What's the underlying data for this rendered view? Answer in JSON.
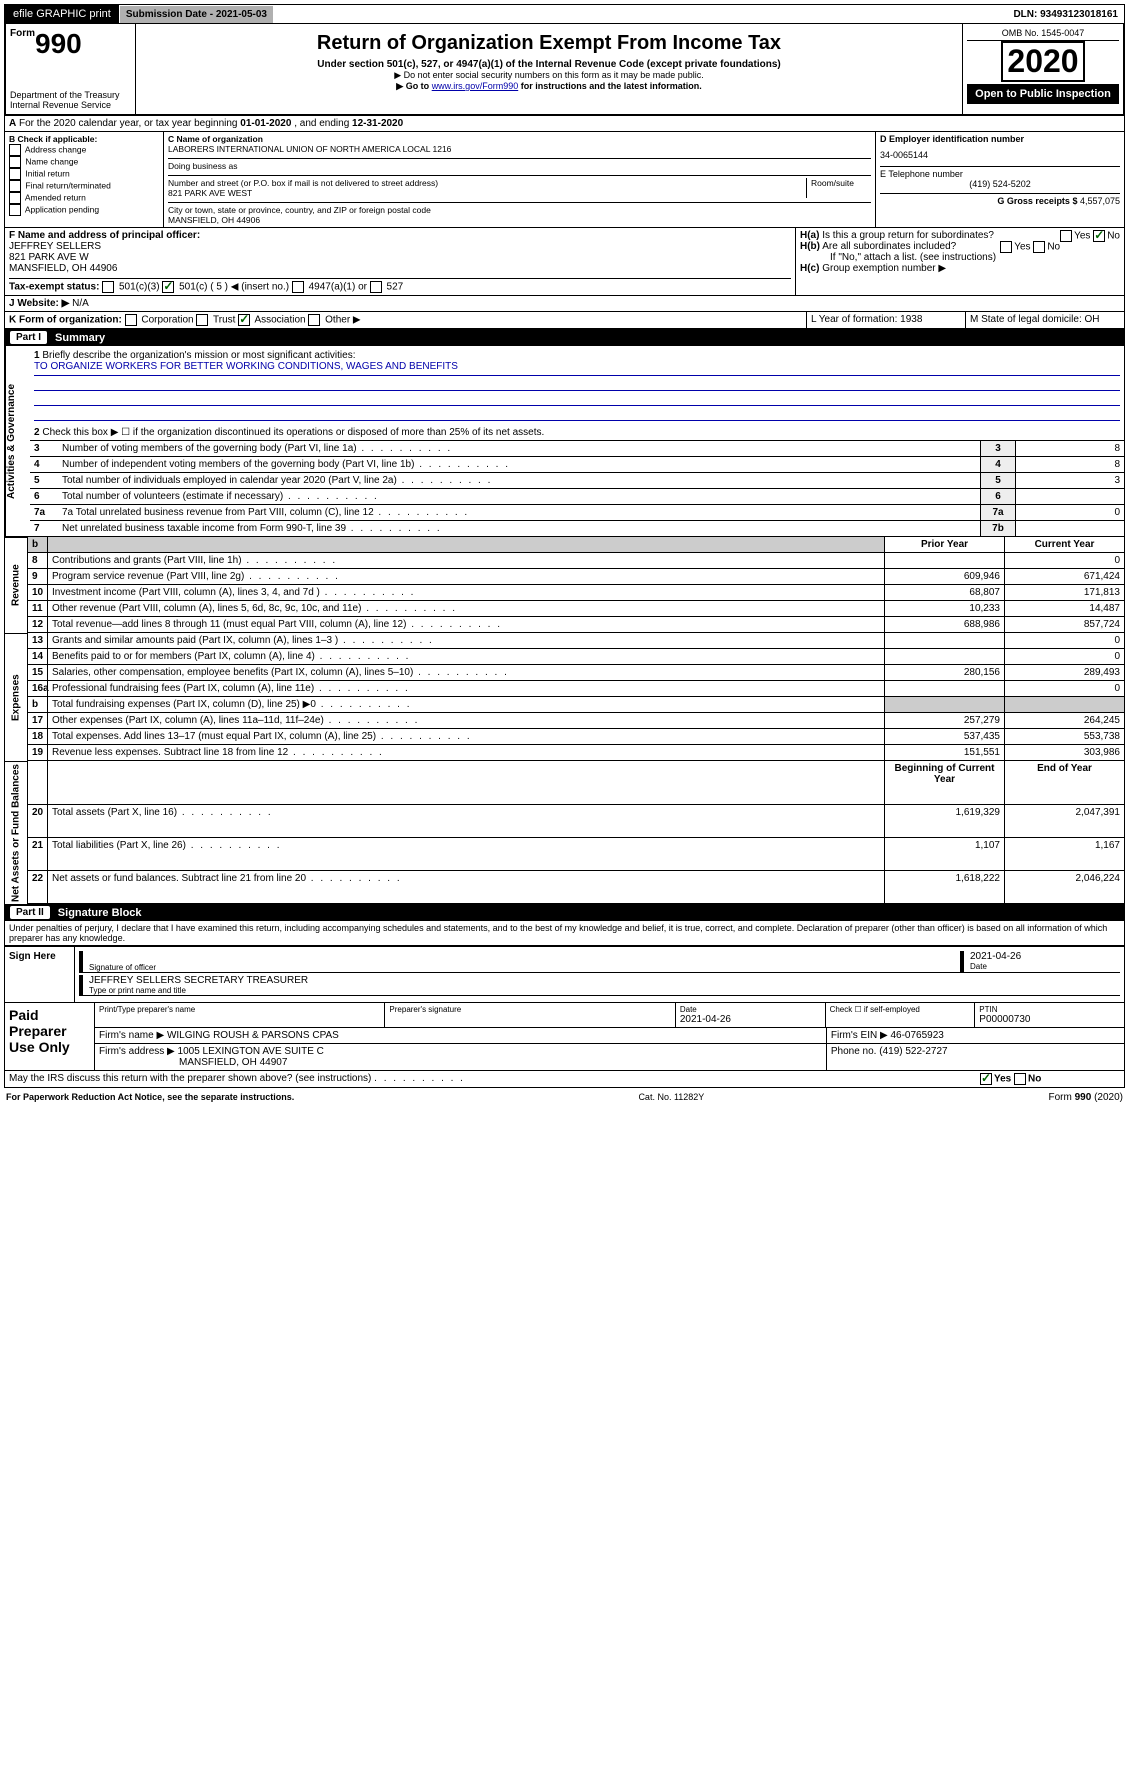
{
  "topbar": {
    "efile": "efile GRAPHIC print",
    "subdate_label": "Submission Date - ",
    "subdate": "2021-05-03",
    "dln_label": "DLN: ",
    "dln": "93493123018161"
  },
  "header": {
    "form_prefix": "Form",
    "form_num": "990",
    "dept": "Department of the Treasury\nInternal Revenue Service",
    "title": "Return of Organization Exempt From Income Tax",
    "subtitle": "Under section 501(c), 527, or 4947(a)(1) of the Internal Revenue Code (except private foundations)",
    "note1": "▶ Do not enter social security numbers on this form as it may be made public.",
    "note2_a": "▶ Go to ",
    "note2_link": "www.irs.gov/Form990",
    "note2_b": " for instructions and the latest information.",
    "omb": "OMB No. 1545-0047",
    "year": "2020",
    "open": "Open to Public Inspection"
  },
  "A": {
    "text": "For the 2020 calendar year, or tax year beginning ",
    "d1": "01-01-2020",
    "mid": " , and ending ",
    "d2": "12-31-2020"
  },
  "B": {
    "label": "B Check if applicable:",
    "items": [
      "Address change",
      "Name change",
      "Initial return",
      "Final return/terminated",
      "Amended return",
      "Application pending"
    ]
  },
  "C": {
    "name_label": "C Name of organization",
    "name": "LABORERS INTERNATIONAL UNION OF NORTH AMERICA LOCAL 1216",
    "dba_label": "Doing business as",
    "addr_label": "Number and street (or P.O. box if mail is not delivered to street address)",
    "room_label": "Room/suite",
    "addr": "821 PARK AVE WEST",
    "city_label": "City or town, state or province, country, and ZIP or foreign postal code",
    "city": "MANSFIELD, OH  44906"
  },
  "D": {
    "label": "D Employer identification number",
    "val": "34-0065144"
  },
  "E": {
    "label": "E Telephone number",
    "val": "(419) 524-5202"
  },
  "G": {
    "label": "G Gross receipts $ ",
    "val": "4,557,075"
  },
  "F": {
    "label": "F Name and address of principal officer:",
    "name": "JEFFREY SELLERS",
    "addr1": "821 PARK AVE W",
    "addr2": "MANSFIELD, OH  44906"
  },
  "H": {
    "a": "Is this a group return for subordinates?",
    "b": "Are all subordinates included?",
    "b2": "If \"No,\" attach a list. (see instructions)",
    "c": "Group exemption number ▶"
  },
  "I": {
    "label": "Tax-exempt status:",
    "opts": [
      "501(c)(3)",
      "501(c) ( 5 ) ◀ (insert no.)",
      "4947(a)(1) or",
      "527"
    ]
  },
  "J": {
    "label": "Website: ▶",
    "val": "N/A"
  },
  "K": {
    "label": "K Form of organization:",
    "opts": [
      "Corporation",
      "Trust",
      "Association",
      "Other ▶"
    ]
  },
  "L": {
    "label": "L Year of formation: ",
    "val": "1938"
  },
  "M": {
    "label": "M State of legal domicile: ",
    "val": "OH"
  },
  "part1": {
    "num": "Part I",
    "title": "Summary"
  },
  "mission": {
    "q": "Briefly describe the organization's mission or most significant activities:",
    "text": "TO ORGANIZE WORKERS FOR BETTER WORKING CONDITIONS, WAGES AND BENEFITS"
  },
  "lines": {
    "2": "Check this box ▶ ☐  if the organization discontinued its operations or disposed of more than 25% of its net assets.",
    "3": {
      "t": "Number of voting members of the governing body (Part VI, line 1a)",
      "n": "3",
      "v": "8"
    },
    "4": {
      "t": "Number of independent voting members of the governing body (Part VI, line 1b)",
      "n": "4",
      "v": "8"
    },
    "5": {
      "t": "Total number of individuals employed in calendar year 2020 (Part V, line 2a)",
      "n": "5",
      "v": "3"
    },
    "6": {
      "t": "Total number of volunteers (estimate if necessary)",
      "n": "6",
      "v": ""
    },
    "7a": {
      "t": "Total unrelated business revenue from Part VIII, column (C), line 12",
      "n": "7a",
      "v": "0"
    },
    "7b": {
      "t": "Net unrelated business taxable income from Form 990-T, line 39",
      "n": "7b",
      "v": ""
    }
  },
  "fin_hdr": {
    "b": "b",
    "prior": "Prior Year",
    "current": "Current Year"
  },
  "revenue": {
    "label": "Revenue",
    "rows": [
      {
        "n": "8",
        "t": "Contributions and grants (Part VIII, line 1h)",
        "p": "",
        "c": "0"
      },
      {
        "n": "9",
        "t": "Program service revenue (Part VIII, line 2g)",
        "p": "609,946",
        "c": "671,424"
      },
      {
        "n": "10",
        "t": "Investment income (Part VIII, column (A), lines 3, 4, and 7d )",
        "p": "68,807",
        "c": "171,813"
      },
      {
        "n": "11",
        "t": "Other revenue (Part VIII, column (A), lines 5, 6d, 8c, 9c, 10c, and 11e)",
        "p": "10,233",
        "c": "14,487"
      },
      {
        "n": "12",
        "t": "Total revenue—add lines 8 through 11 (must equal Part VIII, column (A), line 12)",
        "p": "688,986",
        "c": "857,724"
      }
    ]
  },
  "expenses": {
    "label": "Expenses",
    "rows": [
      {
        "n": "13",
        "t": "Grants and similar amounts paid (Part IX, column (A), lines 1–3 )",
        "p": "",
        "c": "0"
      },
      {
        "n": "14",
        "t": "Benefits paid to or for members (Part IX, column (A), line 4)",
        "p": "",
        "c": "0"
      },
      {
        "n": "15",
        "t": "Salaries, other compensation, employee benefits (Part IX, column (A), lines 5–10)",
        "p": "280,156",
        "c": "289,493"
      },
      {
        "n": "16a",
        "t": "Professional fundraising fees (Part IX, column (A), line 11e)",
        "p": "",
        "c": "0"
      },
      {
        "n": "b",
        "t": "Total fundraising expenses (Part IX, column (D), line 25) ▶0",
        "p": "SHADE",
        "c": "SHADE"
      },
      {
        "n": "17",
        "t": "Other expenses (Part IX, column (A), lines 11a–11d, 11f–24e)",
        "p": "257,279",
        "c": "264,245"
      },
      {
        "n": "18",
        "t": "Total expenses. Add lines 13–17 (must equal Part IX, column (A), line 25)",
        "p": "537,435",
        "c": "553,738"
      },
      {
        "n": "19",
        "t": "Revenue less expenses. Subtract line 18 from line 12",
        "p": "151,551",
        "c": "303,986"
      }
    ]
  },
  "netassets": {
    "label": "Net Assets or Fund Balances",
    "hdr": {
      "p": "Beginning of Current Year",
      "c": "End of Year"
    },
    "rows": [
      {
        "n": "20",
        "t": "Total assets (Part X, line 16)",
        "p": "1,619,329",
        "c": "2,047,391"
      },
      {
        "n": "21",
        "t": "Total liabilities (Part X, line 26)",
        "p": "1,107",
        "c": "1,167"
      },
      {
        "n": "22",
        "t": "Net assets or fund balances. Subtract line 21 from line 20",
        "p": "1,618,222",
        "c": "2,046,224"
      }
    ]
  },
  "part2": {
    "num": "Part II",
    "title": "Signature Block"
  },
  "perjury": "Under penalties of perjury, I declare that I have examined this return, including accompanying schedules and statements, and to the best of my knowledge and belief, it is true, correct, and complete. Declaration of preparer (other than officer) is based on all information of which preparer has any knowledge.",
  "sign": {
    "here": "Sign Here",
    "sig_label": "Signature of officer",
    "date": "2021-04-26",
    "date_label": "Date",
    "name": "JEFFREY SELLERS SECRETARY TREASURER",
    "name_label": "Type or print name and title"
  },
  "paid": {
    "label": "Paid Preparer Use Only",
    "h1": "Print/Type preparer's name",
    "h2": "Preparer's signature",
    "h3": "Date",
    "h4": "Check ☐ if self-employed",
    "h5": "PTIN",
    "date": "2021-04-26",
    "ptin": "P00000730",
    "firm_label": "Firm's name  ▶",
    "firm": "WILGING ROUSH & PARSONS CPAS",
    "ein_label": "Firm's EIN ▶",
    "ein": "46-0765923",
    "addr_label": "Firm's address ▶",
    "addr": "1005 LEXINGTON AVE SUITE C",
    "city": "MANSFIELD, OH  44907",
    "phone_label": "Phone no. ",
    "phone": "(419) 522-2727"
  },
  "discuss": "May the IRS discuss this return with the preparer shown above? (see instructions)",
  "footer": {
    "left": "For Paperwork Reduction Act Notice, see the separate instructions.",
    "mid": "Cat. No. 11282Y",
    "right": "Form 990 (2020)"
  }
}
